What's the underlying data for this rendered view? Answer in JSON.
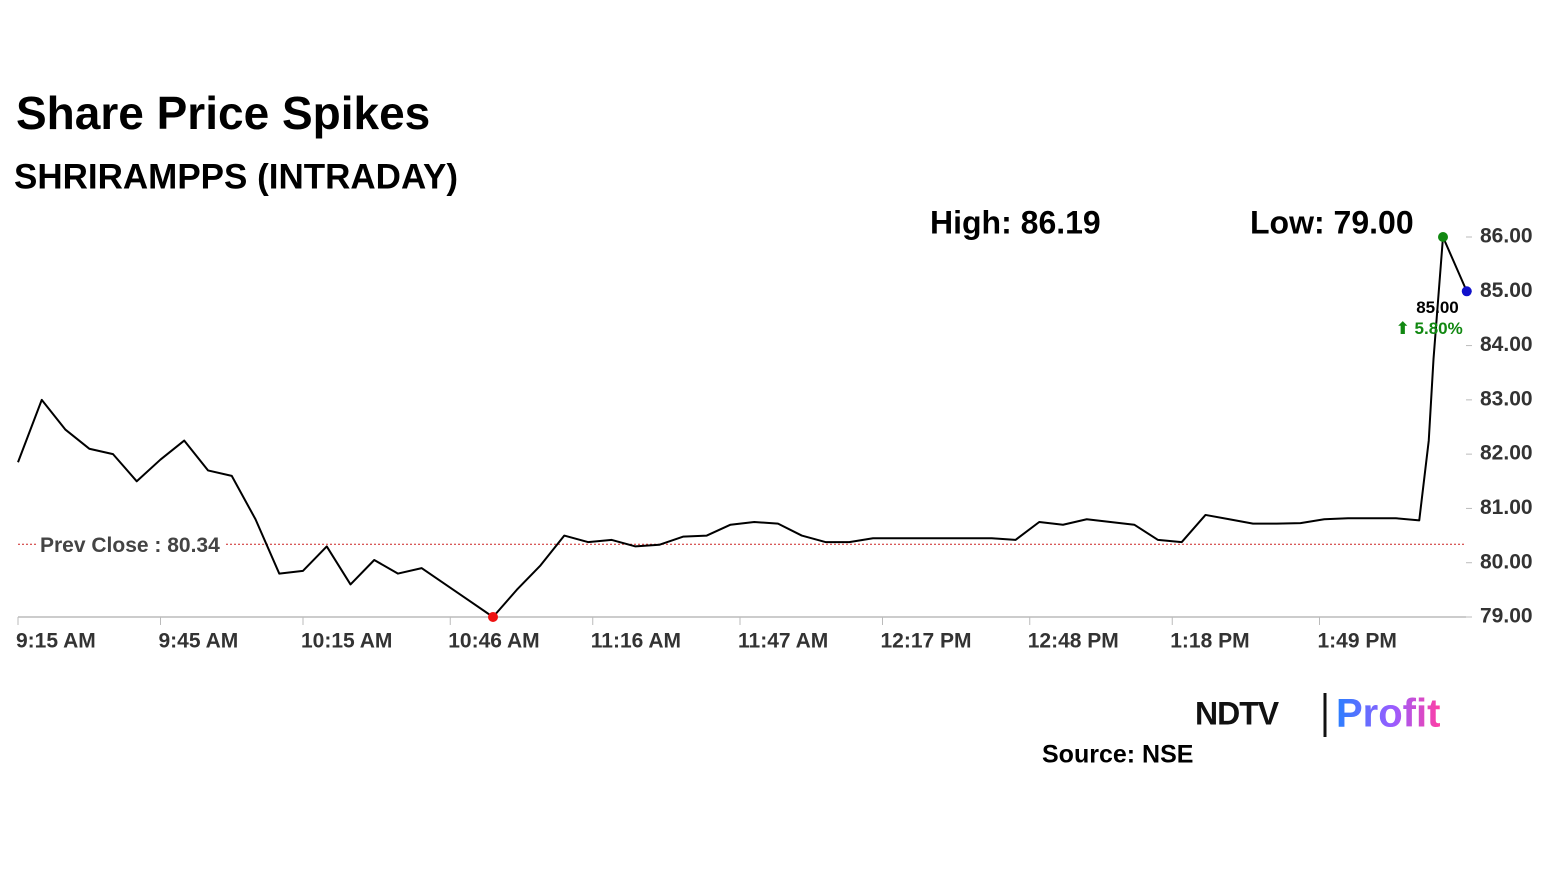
{
  "chart_data": {
    "type": "line",
    "title": "Share Price Spikes",
    "subtitle": "SHRIRAMPPS (INTRADAY)",
    "high_label": "High: 86.19",
    "low_label": "Low: 79.00",
    "prev_close": {
      "label": "Prev Close : 80.34",
      "value": 80.34,
      "color": "#cc2222"
    },
    "last_label": "85.00",
    "change_label": "⬆ 5.80%",
    "change_color": "#118811",
    "color": "#000000",
    "high_color": "#118811",
    "low_color": "#ee1111",
    "last_color": "#1111cc",
    "x": [
      "9:15 AM",
      "9:20 AM",
      "9:25 AM",
      "9:30 AM",
      "9:35 AM",
      "9:40 AM",
      "9:45 AM",
      "9:50 AM",
      "9:55 AM",
      "10:00 AM",
      "10:05 AM",
      "10:10 AM",
      "10:15 AM",
      "10:20 AM",
      "10:25 AM",
      "10:30 AM",
      "10:35 AM",
      "10:40 AM",
      "10:45 AM",
      "10:50 AM",
      "10:55 AM",
      "11:00 AM",
      "11:05 AM",
      "11:10 AM",
      "11:15 AM",
      "11:20 AM",
      "11:25 AM",
      "11:30 AM",
      "11:35 AM",
      "11:40 AM",
      "11:45 AM",
      "11:50 AM",
      "11:55 AM",
      "12:00 PM",
      "12:05 PM",
      "12:10 PM",
      "12:15 PM",
      "12:20 PM",
      "12:25 PM",
      "12:30 PM",
      "12:35 PM",
      "12:40 PM",
      "12:45 PM",
      "12:50 PM",
      "12:55 PM",
      "1:00 PM",
      "1:05 PM",
      "1:10 PM",
      "1:15 PM",
      "1:20 PM",
      "1:25 PM",
      "1:30 PM",
      "1:35 PM",
      "1:40 PM",
      "1:45 PM",
      "1:50 PM",
      "1:55 PM",
      "2:00 PM",
      "2:05 PM",
      "2:10 PM",
      "2:12 PM",
      "2:13 PM",
      "2:15 PM",
      "2:20 PM"
    ],
    "values": [
      81.85,
      83.0,
      82.45,
      82.1,
      82.0,
      81.5,
      81.9,
      82.25,
      81.7,
      81.6,
      80.8,
      79.8,
      79.85,
      80.3,
      79.6,
      80.05,
      79.8,
      79.9,
      79.6,
      79.3,
      79.0,
      79.5,
      79.95,
      80.5,
      80.38,
      80.42,
      80.3,
      80.33,
      80.48,
      80.5,
      80.7,
      80.75,
      80.72,
      80.5,
      80.38,
      80.38,
      80.45,
      80.45,
      80.45,
      80.45,
      80.45,
      80.45,
      80.42,
      80.75,
      80.7,
      80.8,
      80.75,
      80.7,
      80.42,
      80.38,
      80.88,
      80.8,
      80.72,
      80.72,
      80.73,
      80.8,
      80.82,
      80.82,
      80.82,
      80.78,
      82.25,
      83.75,
      86.0,
      85.0
    ],
    "ylim": [
      79,
      86
    ],
    "yticks": [
      {
        "value": 79,
        "label": "79.00"
      },
      {
        "value": 80,
        "label": "80.00"
      },
      {
        "value": 81,
        "label": "81.00"
      },
      {
        "value": 82,
        "label": "82.00"
      },
      {
        "value": 83,
        "label": "83.00"
      },
      {
        "value": 84,
        "label": "84.00"
      },
      {
        "value": 85,
        "label": "85.00"
      },
      {
        "value": 86,
        "label": "86.00"
      }
    ],
    "xticks": [
      "9:15 AM",
      "9:45 AM",
      "10:15 AM",
      "10:46 AM",
      "11:16 AM",
      "11:47 AM",
      "12:17 PM",
      "12:48 PM",
      "1:18 PM",
      "1:49 PM"
    ],
    "source": "Source: NSE",
    "logo": {
      "left": "NDTV",
      "right": "Profit"
    }
  }
}
